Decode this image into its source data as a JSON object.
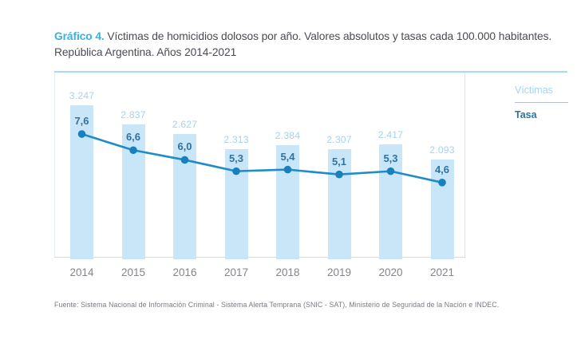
{
  "title": {
    "badge": "Gráfico 4.",
    "line1": " Víctimas de homicidios dolosos por año. Valores absolutos y tasas cada 100.000 habitantes.",
    "line2": "República Argentina. Años 2014-2021"
  },
  "legend": {
    "victims_label": "Víctimas",
    "rate_label": "Tasa"
  },
  "source": "Fuente: Sistema Nacional de Información Criminal - Sistema Alerta Temprana (SNIC - SAT), Ministerio de Seguridad de la Nación e INDEC.",
  "colors": {
    "bar_fill": "#c9e6f8",
    "line_stroke": "#1e8cc8",
    "dot_fill": "#1880bd",
    "victims_value_text": "#a3d4ee",
    "rate_value_text": "#31729f",
    "accent_cyan": "#35b2e5"
  },
  "chart_data": {
    "type": "bar",
    "title": "Víctimas de homicidios dolosos por año. Valores absolutos y tasas cada 100.000 habitantes. República Argentina. Años 2014-2021",
    "categories": [
      "2014",
      "2015",
      "2016",
      "2017",
      "2018",
      "2019",
      "2020",
      "2021"
    ],
    "series": [
      {
        "name": "Víctimas",
        "type": "bar",
        "values": [
          3247,
          2837,
          2627,
          2313,
          2384,
          2307,
          2417,
          2093
        ],
        "labels": [
          "3.247",
          "2.837",
          "2.627",
          "2.313",
          "2.384",
          "2.307",
          "2.417",
          "2.093"
        ]
      },
      {
        "name": "Tasa",
        "type": "line",
        "values": [
          7.6,
          6.6,
          6.0,
          5.3,
          5.4,
          5.1,
          5.3,
          4.6
        ],
        "labels": [
          "7,6",
          "6,6",
          "6,0",
          "5,3",
          "5,4",
          "5,1",
          "5,3",
          "4,6"
        ]
      }
    ],
    "xlabel": "",
    "ylabel": "",
    "grid": false,
    "legend_position": "right",
    "bar_axis_range": [
      0,
      3247
    ],
    "line_axis_range": [
      0,
      7.6
    ]
  }
}
